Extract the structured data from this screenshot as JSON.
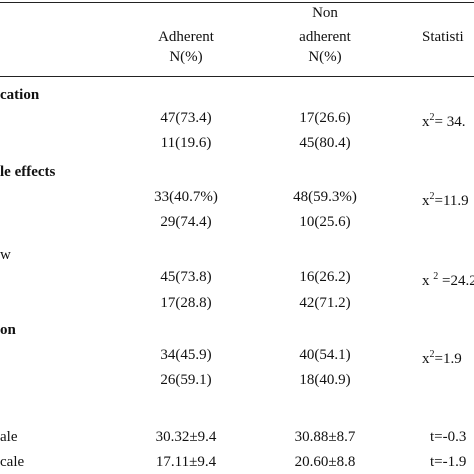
{
  "table": {
    "header": {
      "adherent": [
        "Adherent",
        "N(%)"
      ],
      "non_adherent": [
        "Non",
        "adherent",
        "N(%)"
      ],
      "statistic": "Statisti"
    },
    "rows": [
      {
        "section": "cation"
      },
      {
        "adherent": "47(73.4)",
        "non_adherent": "17(26.6)",
        "statistic": {
          "base": "x",
          "sup": "2",
          "rest": "= 34."
        }
      },
      {
        "adherent": "11(19.6)",
        "non_adherent": "45(80.4)"
      },
      {
        "section": "le effects"
      },
      {
        "adherent": "33(40.7%)",
        "non_adherent": "48(59.3%)",
        "statistic": {
          "base": "x",
          "sup": "2",
          "rest": "=11.9"
        }
      },
      {
        "adherent": "29(74.4)",
        "non_adherent": "10(25.6)"
      },
      {
        "label": "w"
      },
      {
        "adherent": "45(73.8)",
        "non_adherent": "16(26.2)",
        "statistic": {
          "base": "x ",
          "sup": "2",
          "rest": " =24.2"
        }
      },
      {
        "adherent": "17(28.8)",
        "non_adherent": "42(71.2)"
      },
      {
        "section": "on"
      },
      {
        "adherent": "34(45.9)",
        "non_adherent": "40(54.1)",
        "statistic": {
          "base": "x",
          "sup": "2",
          "rest": "=1.9"
        }
      },
      {
        "adherent": "26(59.1)",
        "non_adherent": "18(40.9)"
      },
      {
        "label": "ale",
        "adherent": "30.32±9.4",
        "non_adherent": "30.88±8.7",
        "statistic": "t=-0.3"
      },
      {
        "label": "cale",
        "adherent": "17.11±9.4",
        "non_adherent": "20.60±8.8",
        "statistic": "t=-1.9"
      }
    ]
  }
}
